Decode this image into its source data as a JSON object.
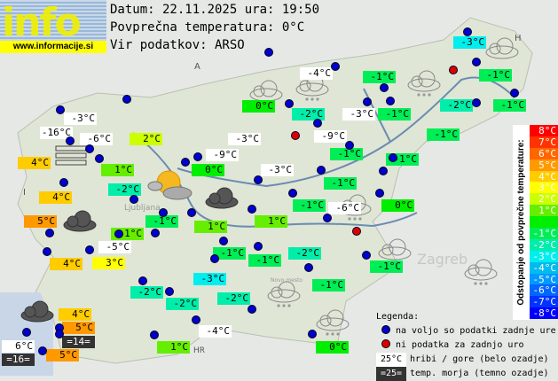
{
  "logo": {
    "word": "info",
    "url": "www.informacije.si"
  },
  "header": {
    "date_line": "Datum: 22.11.2025 ura: 19:50",
    "avg_line": "Povprečna temperatura: 0°C",
    "source_line": "Vir podatkov: ARSO"
  },
  "map_labels": [
    "A",
    "I",
    "H",
    "HR",
    "Zagreb",
    "Ljubljana",
    "Novo mesto"
  ],
  "stations": [
    {
      "t": "-3°C",
      "k": "n",
      "v": -3
    },
    {
      "t": "-4°C",
      "k": "m"
    },
    {
      "t": "-1°C",
      "k": "n",
      "v": -1
    },
    {
      "t": "-1°C",
      "k": "n",
      "v": -1
    },
    {
      "t": "0°C",
      "k": "n",
      "v": 0
    },
    {
      "t": "-2°C",
      "k": "n",
      "v": -2
    },
    {
      "t": "-3°C",
      "k": "m"
    },
    {
      "t": "-1°C",
      "k": "n",
      "v": -1
    },
    {
      "t": "-2°C",
      "k": "n",
      "v": -2
    },
    {
      "t": "-1°C",
      "k": "n",
      "v": -1
    },
    {
      "t": "-3°C",
      "k": "m"
    },
    {
      "t": "-16°C",
      "k": "m"
    },
    {
      "t": "-6°C",
      "k": "m"
    },
    {
      "t": "2°C",
      "k": "n",
      "v": 2
    },
    {
      "t": "-3°C",
      "k": "m"
    },
    {
      "t": "-9°C",
      "k": "m"
    },
    {
      "t": "-1°C",
      "k": "n",
      "v": -1
    },
    {
      "t": "-9°C",
      "k": "m"
    },
    {
      "t": "4°C",
      "k": "n",
      "v": 4
    },
    {
      "t": "-1°C",
      "k": "n",
      "v": -1
    },
    {
      "t": "-1°C",
      "k": "n",
      "v": -1
    },
    {
      "t": "1°C",
      "k": "n",
      "v": 1
    },
    {
      "t": "0°C",
      "k": "n",
      "v": 0
    },
    {
      "t": "-3°C",
      "k": "m"
    },
    {
      "t": "-1°C",
      "k": "n",
      "v": -1
    },
    {
      "t": "-2°C",
      "k": "n",
      "v": -2
    },
    {
      "t": "4°C",
      "k": "n",
      "v": 4
    },
    {
      "t": "-1°C",
      "k": "n",
      "v": -1
    },
    {
      "t": "-6°C",
      "k": "m"
    },
    {
      "t": "0°C",
      "k": "n",
      "v": 0
    },
    {
      "t": "5°C",
      "k": "n",
      "v": 5
    },
    {
      "t": "-1°C",
      "k": "n",
      "v": -1
    },
    {
      "t": "1°C",
      "k": "n",
      "v": 1
    },
    {
      "t": "1°C",
      "k": "n",
      "v": 1
    },
    {
      "t": "1°C",
      "k": "n",
      "v": 1
    },
    {
      "t": "-5°C",
      "k": "m"
    },
    {
      "t": "-1°C",
      "k": "n",
      "v": -1
    },
    {
      "t": "-1°C",
      "k": "n",
      "v": -1
    },
    {
      "t": "-2°C",
      "k": "n",
      "v": -2
    },
    {
      "t": "4°C",
      "k": "n",
      "v": 4
    },
    {
      "t": "3°C",
      "k": "n",
      "v": 3
    },
    {
      "t": "-1°C",
      "k": "n",
      "v": -1
    },
    {
      "t": "-3°C",
      "k": "n",
      "v": -3
    },
    {
      "t": "-1°C",
      "k": "n",
      "v": -1
    },
    {
      "t": "-2°C",
      "k": "n",
      "v": -2
    },
    {
      "t": "-2°C",
      "k": "n",
      "v": -2
    },
    {
      "t": "-2°C",
      "k": "n",
      "v": -2
    },
    {
      "t": "4°C",
      "k": "n",
      "v": 4
    },
    {
      "t": "5°C",
      "k": "n",
      "v": 5
    },
    {
      "t": "=14=",
      "k": "s"
    },
    {
      "t": "-4°C",
      "k": "m"
    },
    {
      "t": "6°C",
      "k": "m"
    },
    {
      "t": "1°C",
      "k": "n",
      "v": 1
    },
    {
      "t": "0°C",
      "k": "n",
      "v": 0
    },
    {
      "t": "5°C",
      "k": "n",
      "v": 5
    },
    {
      "t": "=16=",
      "k": "s"
    }
  ],
  "scale": {
    "title": "Odstopanje od povprečne temperature:",
    "rows": [
      {
        "t": "8°C",
        "c": "#ff0000"
      },
      {
        "t": "7°C",
        "c": "#ff3300"
      },
      {
        "t": "6°C",
        "c": "#ff6600"
      },
      {
        "t": "5°C",
        "c": "#ff9900"
      },
      {
        "t": "4°C",
        "c": "#ffcc00"
      },
      {
        "t": "3°C",
        "c": "#ffff00"
      },
      {
        "t": "2°C",
        "c": "#ccff00"
      },
      {
        "t": "1°C",
        "c": "#66ee00"
      },
      {
        "t": "",
        "c": "#00ee00"
      },
      {
        "t": "-1°C",
        "c": "#00ee55"
      },
      {
        "t": "-2°C",
        "c": "#00eeaa"
      },
      {
        "t": "-3°C",
        "c": "#00eeee"
      },
      {
        "t": "-4°C",
        "c": "#00bbee"
      },
      {
        "t": "-5°C",
        "c": "#0099ff"
      },
      {
        "t": "-6°C",
        "c": "#0066ff"
      },
      {
        "t": "-7°C",
        "c": "#0033ff"
      },
      {
        "t": "-8°C",
        "c": "#0000ff"
      }
    ]
  },
  "legend": {
    "title": "Legenda:",
    "available": "na voljo so podatki zadnje ure",
    "missing": "ni podatka za zadnjo uro",
    "mountain_sample": "25°C",
    "mountain_text": "hribi / gore (belo ozadje)",
    "sea_sample": "=25=",
    "sea_text": "temp. morja (temno ozadje)"
  },
  "colors": {
    "dot_available": "#0000cc",
    "dot_missing": "#dd0000",
    "mountain_bg": "#ffffff",
    "sea_bg": "#333333"
  }
}
